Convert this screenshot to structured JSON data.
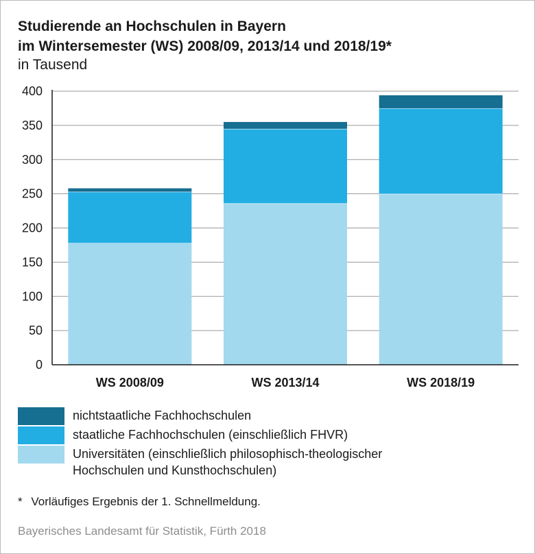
{
  "header": {
    "title_line1": "Studierende an Hochschulen in Bayern",
    "title_line2": "im Wintersemester (WS) 2008/09, 2013/14 und 2018/19*",
    "subtitle": "in Tausend"
  },
  "chart_data": {
    "type": "bar",
    "stacked": true,
    "title": "Studierende an Hochschulen in Bayern im Wintersemester (WS) 2008/09, 2013/14 und 2018/19*",
    "ylabel": "in Tausend",
    "xlabel": "",
    "ylim": [
      0,
      400
    ],
    "yticks": [
      0,
      50,
      100,
      150,
      200,
      250,
      300,
      350,
      400
    ],
    "grid": true,
    "categories": [
      "WS 2008/09",
      "WS 2013/14",
      "WS 2018/19"
    ],
    "series": [
      {
        "name": "Universitäten (einschließlich philosophisch-theologischer Hochschulen und Kunsthochschulen)",
        "color": "#a3d9ee",
        "values": [
          178,
          236,
          250
        ]
      },
      {
        "name": "staatliche Fachhochschulen (einschließlich FHVR)",
        "color": "#22aee3",
        "values": [
          75,
          109,
          125
        ]
      },
      {
        "name": "nichtstaatliche Fachhochschulen",
        "color": "#166e91",
        "values": [
          5,
          10,
          19
        ]
      }
    ]
  },
  "legend": {
    "items": [
      {
        "label": "nichtstaatliche Fachhochschulen",
        "color": "#166e91"
      },
      {
        "label": "staatliche Fachhochschulen (einschließlich FHVR)",
        "color": "#22aee3"
      },
      {
        "label": "Universitäten (einschließlich philosophisch-theologischer\nHochschulen und Kunsthochschulen)",
        "color": "#a3d9ee"
      }
    ]
  },
  "footnote": {
    "marker": "*",
    "text": "Vorläufiges Ergebnis der 1. Schnellmeldung."
  },
  "source": "Bayerisches Landesamt für Statistik, Fürth 2018"
}
